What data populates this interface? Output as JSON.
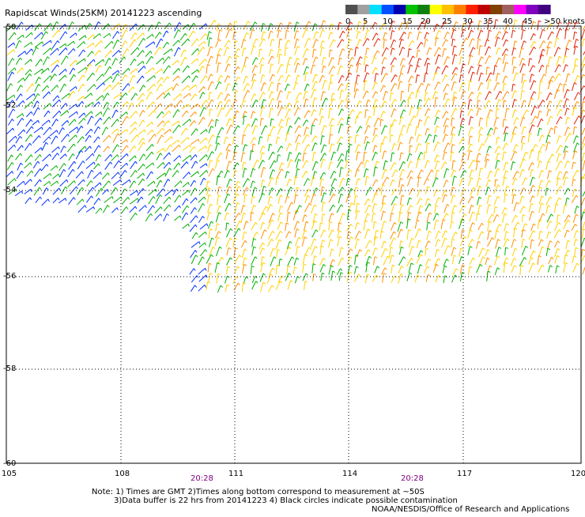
{
  "title": "Rapidscat Winds(25KM) 20141223 ascending",
  "legend": {
    "colors": [
      "#505050",
      "#a0a0a0",
      "#00e0ff",
      "#0050ff",
      "#0000b0",
      "#00c000",
      "#108010",
      "#ffff00",
      "#ffc000",
      "#ff8000",
      "#ff2000",
      "#c00000",
      "#804000",
      "#a06060",
      "#ff00ff",
      "#8000c0",
      "#400080"
    ],
    "labels": [
      "0",
      "5",
      "10",
      "15",
      "20",
      "25",
      "30",
      "35",
      "40",
      "45",
      ">50 knots"
    ]
  },
  "axes": {
    "lon_labels": [
      "105",
      "108",
      "111",
      "114",
      "117",
      "120"
    ],
    "lat_labels": [
      "-50",
      "-52",
      "-54",
      "-56",
      "-58",
      "-60"
    ]
  },
  "time_labels": [
    "20:28",
    "20:28"
  ],
  "notes": [
    "Note: 1) Times are GMT 2)Times along bottom correspond to measurement at ~50S",
    "3)Data buffer is 22 hrs from 20141223 4) Black circles indicate possible contamination"
  ],
  "credit": "NOAA/NESDIS/Office of Research and Applications",
  "wind_colors": {
    "blue": "#0030ff",
    "green": "#00b000",
    "yellow": "#ffd000",
    "orange": "#ff9000",
    "red": "#e02000"
  }
}
